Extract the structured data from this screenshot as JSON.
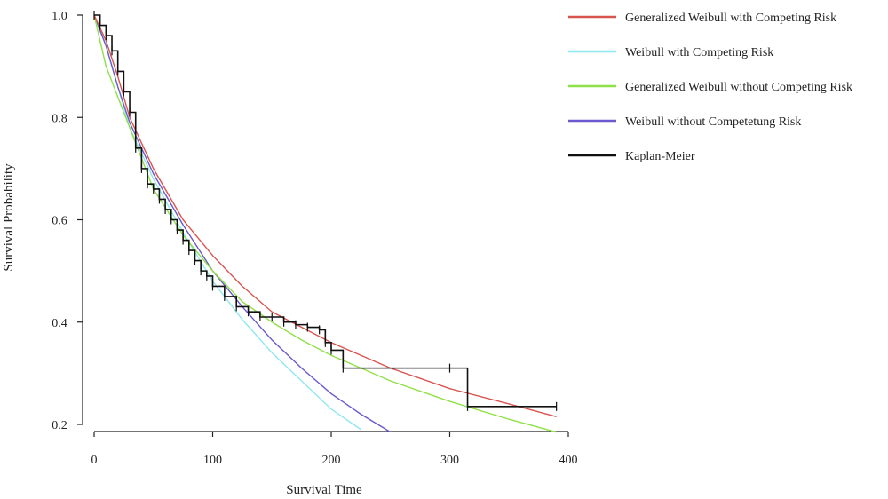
{
  "chart_data": {
    "type": "line",
    "xlabel": "Survival Time",
    "ylabel": "Survival Probability",
    "xlim": [
      0,
      400
    ],
    "ylim": [
      0.2,
      1.0
    ],
    "x_ticks": [
      0,
      100,
      200,
      300,
      400
    ],
    "y_ticks": [
      0.2,
      0.4,
      0.6,
      0.8,
      1.0
    ],
    "y_tick_labels": [
      "0.2",
      "0.4",
      "0.6",
      "0.8",
      "1.0"
    ],
    "grid": false,
    "legend_position": "top-right",
    "series": [
      {
        "name": "Generalized Weibull with Competing Risk",
        "color": "#d9534f",
        "x": [
          0,
          10,
          20,
          30,
          50,
          75,
          100,
          125,
          150,
          175,
          200,
          250,
          300,
          350,
          390
        ],
        "y": [
          1.0,
          0.95,
          0.88,
          0.8,
          0.7,
          0.6,
          0.53,
          0.47,
          0.42,
          0.39,
          0.36,
          0.31,
          0.27,
          0.24,
          0.215
        ]
      },
      {
        "name": "Weibull with Competing Risk",
        "color": "#8fe8f0",
        "x": [
          0,
          10,
          20,
          30,
          50,
          75,
          100,
          125,
          150,
          175,
          200,
          225
        ],
        "y": [
          1.0,
          0.94,
          0.86,
          0.78,
          0.68,
          0.575,
          0.48,
          0.405,
          0.34,
          0.285,
          0.23,
          0.19
        ]
      },
      {
        "name": "Generalized Weibull without Competing Risk",
        "color": "#90e048",
        "x": [
          0,
          10,
          20,
          30,
          50,
          75,
          100,
          125,
          150,
          175,
          200,
          250,
          300,
          350,
          390
        ],
        "y": [
          1.0,
          0.9,
          0.84,
          0.78,
          0.66,
          0.57,
          0.5,
          0.44,
          0.4,
          0.365,
          0.335,
          0.285,
          0.245,
          0.21,
          0.185
        ]
      },
      {
        "name": "Weibull without Competetung Risk",
        "color": "#6a5acd",
        "x": [
          0,
          10,
          20,
          30,
          50,
          75,
          100,
          125,
          150,
          175,
          200,
          225,
          250
        ],
        "y": [
          1.0,
          0.94,
          0.86,
          0.79,
          0.69,
          0.59,
          0.5,
          0.43,
          0.365,
          0.31,
          0.26,
          0.22,
          0.185
        ]
      },
      {
        "name": "Kaplan-Meier",
        "color": "#111111",
        "type": "step",
        "x": [
          0,
          5,
          10,
          15,
          20,
          25,
          30,
          35,
          40,
          45,
          50,
          55,
          60,
          65,
          70,
          75,
          80,
          85,
          90,
          95,
          100,
          110,
          120,
          130,
          140,
          150,
          160,
          170,
          180,
          190,
          195,
          200,
          210,
          300,
          315,
          390
        ],
        "y": [
          1.0,
          0.98,
          0.96,
          0.93,
          0.89,
          0.85,
          0.81,
          0.74,
          0.7,
          0.67,
          0.66,
          0.64,
          0.62,
          0.6,
          0.58,
          0.56,
          0.54,
          0.52,
          0.5,
          0.49,
          0.47,
          0.45,
          0.43,
          0.42,
          0.41,
          0.41,
          0.4,
          0.395,
          0.39,
          0.385,
          0.36,
          0.345,
          0.31,
          0.31,
          0.235,
          0.235
        ]
      }
    ]
  }
}
